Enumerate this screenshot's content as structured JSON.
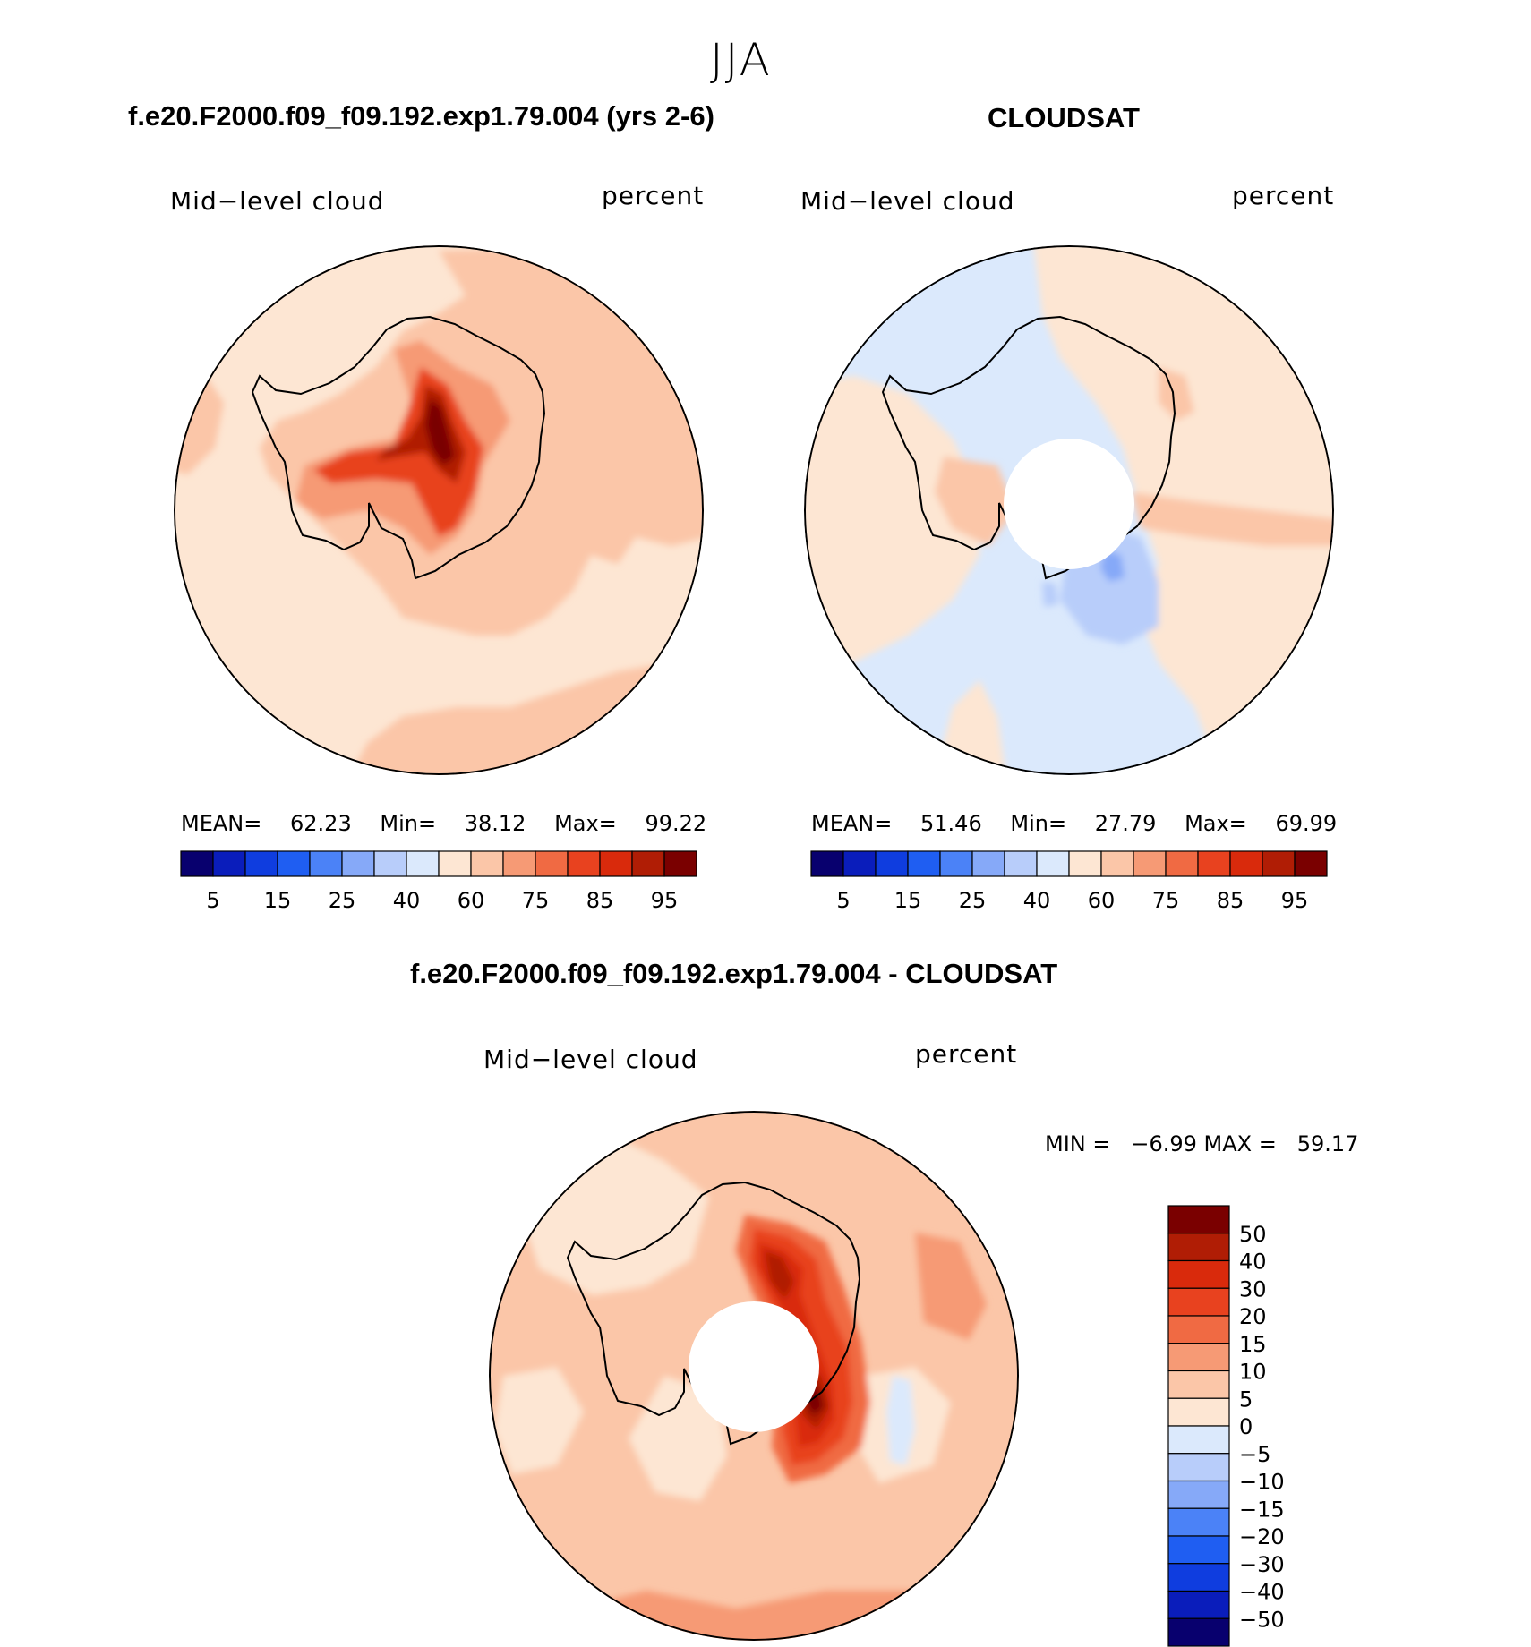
{
  "figure": {
    "season": "JJA",
    "panel1": {
      "title": "f.e20.F2000.f09_f09.192.exp1.79.004 (yrs 2-6)",
      "left_label": "Mid−level cloud",
      "right_label": "percent",
      "mean_label": "MEAN=",
      "mean_value": "62.23",
      "min_label": "Min=",
      "min_value": "38.12",
      "max_label": "Max=",
      "max_value": "99.22"
    },
    "panel2": {
      "title": "CLOUDSAT",
      "left_label": "Mid−level cloud",
      "right_label": "percent",
      "mean_label": "MEAN=",
      "mean_value": "51.46",
      "min_label": "Min=",
      "min_value": "27.79",
      "max_label": "Max=",
      "max_value": "69.99"
    },
    "panel3": {
      "title": "f.e20.F2000.f09_f09.192.exp1.79.004 - CLOUDSAT",
      "left_label": "Mid−level cloud",
      "right_label": "percent",
      "minmax_text": "MIN =   −6.99 MAX =   59.17"
    },
    "colorbar_abs": {
      "colors": [
        "#08006e",
        "#0a1dbb",
        "#0f3ddf",
        "#1f5ef2",
        "#4b82f7",
        "#86a9f8",
        "#b8cdfa",
        "#dbe9fc",
        "#fde6d3",
        "#fbc6a8",
        "#f69a75",
        "#f06a43",
        "#e8421f",
        "#d92a0c",
        "#b01d05",
        "#7a0000"
      ],
      "tick_labels": [
        "5",
        "15",
        "25",
        "40",
        "60",
        "75",
        "85",
        "95"
      ]
    },
    "colorbar_diff": {
      "colors": [
        "#7a0000",
        "#b01d05",
        "#d92a0c",
        "#e8421f",
        "#f06a43",
        "#f69a75",
        "#fbc6a8",
        "#fde6d3",
        "#dbe9fc",
        "#b8cdfa",
        "#86a9f8",
        "#4b82f7",
        "#1f5ef2",
        "#0f3ddf",
        "#0a1dbb",
        "#08006e"
      ],
      "tick_labels": [
        "50",
        "40",
        "30",
        "20",
        "15",
        "10",
        "5",
        "0",
        "−5",
        "−10",
        "−15",
        "−20",
        "−30",
        "−40",
        "−50"
      ]
    }
  }
}
